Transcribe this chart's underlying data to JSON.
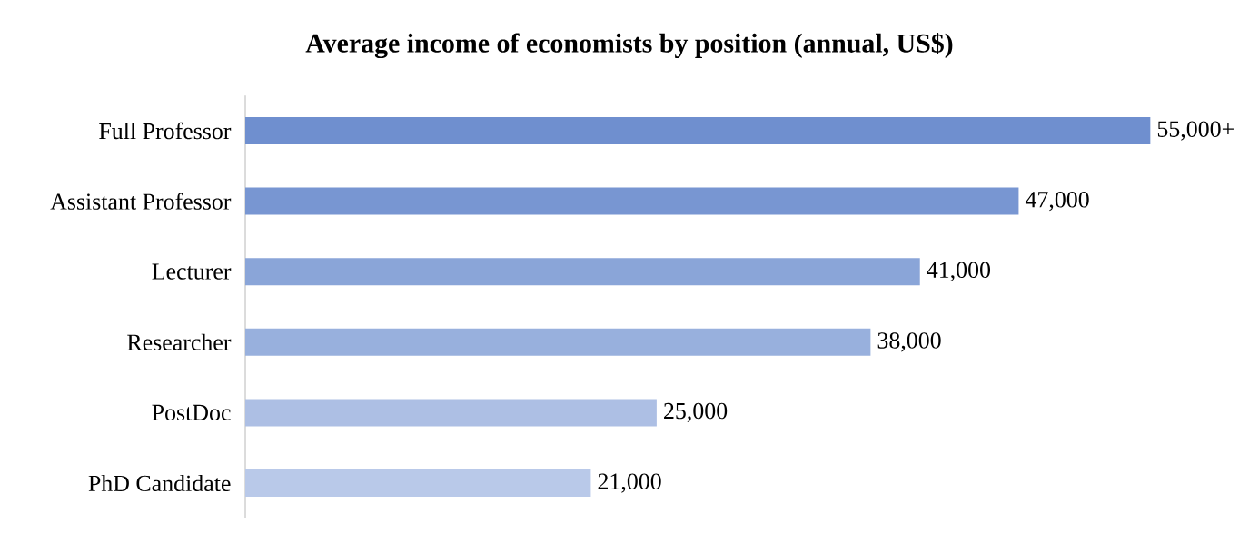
{
  "chart_data": {
    "type": "bar",
    "orientation": "horizontal",
    "title": "Average income of economists by position (annual, US$)",
    "categories": [
      "Full Professor",
      "Assistant Professor",
      "Lecturer",
      "Researcher",
      "PostDoc",
      "PhD Candidate"
    ],
    "values": [
      55000,
      47000,
      41000,
      38000,
      25000,
      21000
    ],
    "colors": [
      "#6f8fcf",
      "#7896d2",
      "#8aa5d8",
      "#98b0dd",
      "#adbfe4",
      "#b9c9e9"
    ],
    "value_labels": [
      "55,000+",
      "47,000",
      "41,000",
      "38,000",
      "25,000",
      "21,000"
    ],
    "tick_labels": "y"
  }
}
